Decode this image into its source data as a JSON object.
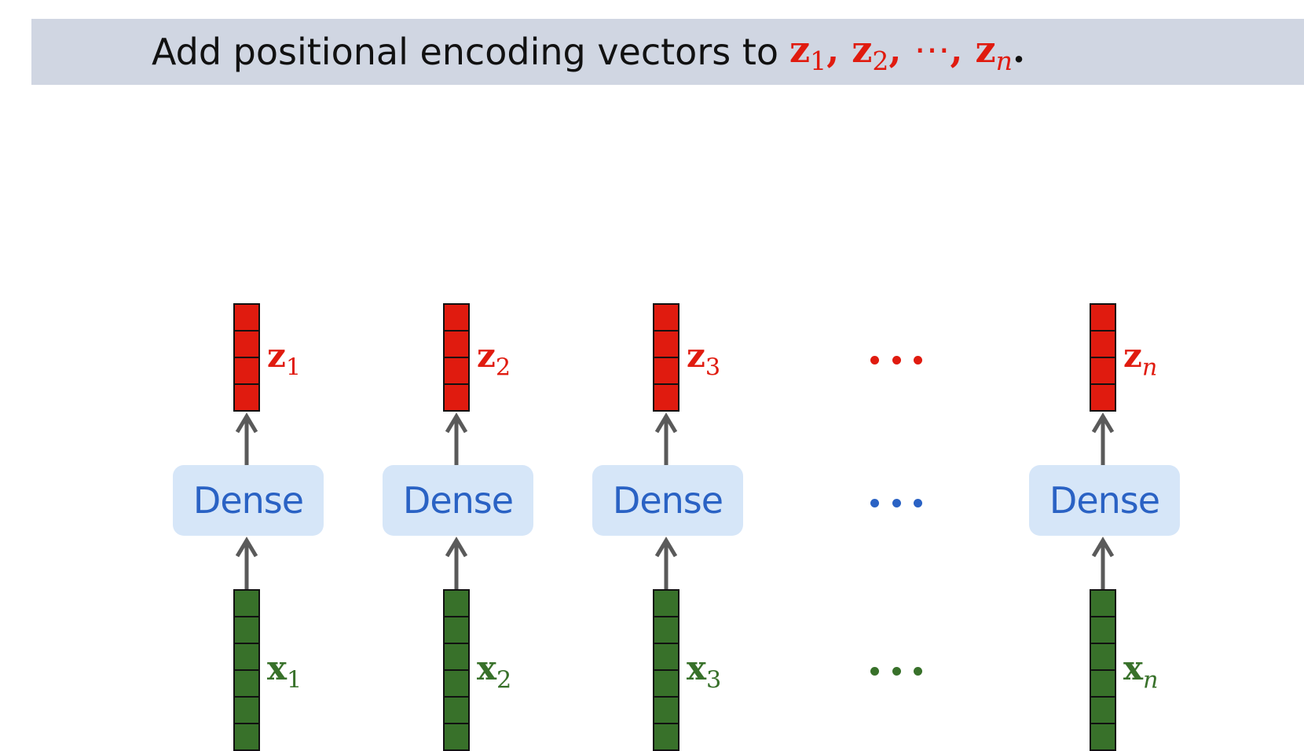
{
  "title": {
    "text": "Add positional encoding vectors to",
    "vars": [
      "z",
      "z",
      "z"
    ],
    "subs": [
      "1",
      "2",
      "n"
    ],
    "sep": ",",
    "cdots": "⋯",
    "period": "."
  },
  "columns": [
    {
      "z_label": "z",
      "z_sub": "1",
      "dense": "Dense",
      "x_label": "x",
      "x_sub": "1"
    },
    {
      "z_label": "z",
      "z_sub": "2",
      "dense": "Dense",
      "x_label": "x",
      "x_sub": "2"
    },
    {
      "z_label": "z",
      "z_sub": "3",
      "dense": "Dense",
      "x_label": "x",
      "x_sub": "3"
    },
    {
      "z_label": "z",
      "z_sub": "n",
      "dense": "Dense",
      "x_label": "x",
      "x_sub": "n"
    }
  ],
  "z_cells": 4,
  "x_cells": 6,
  "colors": {
    "z_vector": "#e01b0f",
    "x_vector": "#38712a",
    "dense_fill": "#d6e6f8",
    "dense_text": "#2a62c4",
    "arrow": "#5a5a5a",
    "title_bar": "#d0d6e2"
  }
}
